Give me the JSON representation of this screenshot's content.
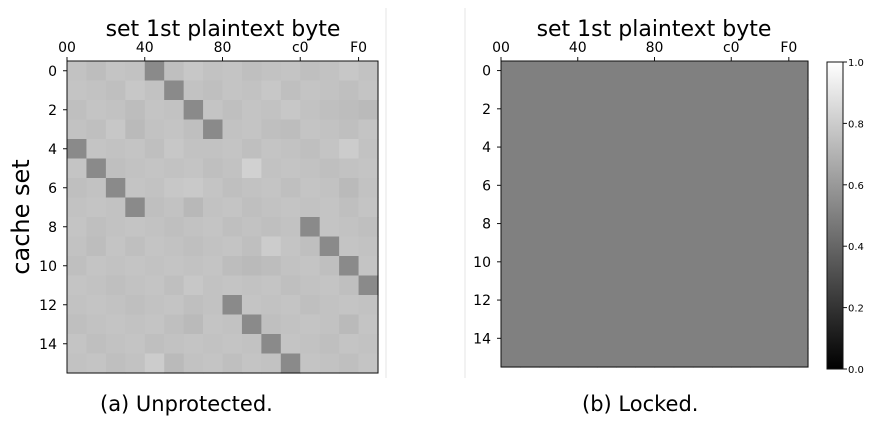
{
  "chart_data": [
    {
      "type": "heatmap",
      "panel": "unprotected",
      "title": "set 1st plaintext byte",
      "ylabel": "cache set",
      "caption": "(a) Unprotected.",
      "x_tick_labels": [
        "00",
        "40",
        "80",
        "c0",
        "F0"
      ],
      "x_tick_values": [
        0,
        64,
        128,
        192,
        240
      ],
      "y_tick_labels": [
        "0",
        "2",
        "4",
        "6",
        "8",
        "10",
        "12",
        "14"
      ],
      "y_tick_values": [
        0,
        2,
        4,
        6,
        8,
        10,
        12,
        14
      ],
      "grid": false,
      "rows": 16,
      "cols": 16,
      "values": [
        [
          0.76,
          0.74,
          0.77,
          0.76,
          0.54,
          0.75,
          0.78,
          0.76,
          0.77,
          0.75,
          0.76,
          0.77,
          0.75,
          0.76,
          0.78,
          0.76
        ],
        [
          0.77,
          0.76,
          0.75,
          0.78,
          0.76,
          0.54,
          0.76,
          0.75,
          0.77,
          0.76,
          0.78,
          0.75,
          0.77,
          0.76,
          0.75,
          0.77
        ],
        [
          0.75,
          0.77,
          0.76,
          0.74,
          0.77,
          0.76,
          0.54,
          0.77,
          0.75,
          0.77,
          0.76,
          0.78,
          0.76,
          0.75,
          0.74,
          0.73
        ],
        [
          0.76,
          0.75,
          0.78,
          0.73,
          0.76,
          0.77,
          0.75,
          0.54,
          0.76,
          0.77,
          0.75,
          0.74,
          0.77,
          0.76,
          0.75,
          0.77
        ],
        [
          0.54,
          0.77,
          0.76,
          0.77,
          0.75,
          0.78,
          0.76,
          0.76,
          0.77,
          0.75,
          0.77,
          0.76,
          0.75,
          0.77,
          0.8,
          0.76
        ],
        [
          0.77,
          0.54,
          0.75,
          0.76,
          0.77,
          0.76,
          0.77,
          0.75,
          0.76,
          0.82,
          0.76,
          0.77,
          0.76,
          0.75,
          0.76,
          0.77
        ],
        [
          0.75,
          0.76,
          0.54,
          0.77,
          0.76,
          0.78,
          0.79,
          0.77,
          0.75,
          0.76,
          0.77,
          0.75,
          0.77,
          0.76,
          0.73,
          0.76
        ],
        [
          0.76,
          0.77,
          0.76,
          0.54,
          0.75,
          0.76,
          0.72,
          0.76,
          0.77,
          0.75,
          0.76,
          0.77,
          0.76,
          0.77,
          0.75,
          0.77
        ],
        [
          0.77,
          0.75,
          0.76,
          0.77,
          0.76,
          0.75,
          0.76,
          0.77,
          0.75,
          0.76,
          0.75,
          0.76,
          0.54,
          0.77,
          0.76,
          0.75
        ],
        [
          0.76,
          0.74,
          0.77,
          0.75,
          0.77,
          0.76,
          0.75,
          0.76,
          0.77,
          0.75,
          0.8,
          0.77,
          0.75,
          0.54,
          0.77,
          0.76
        ],
        [
          0.75,
          0.77,
          0.76,
          0.77,
          0.76,
          0.77,
          0.76,
          0.77,
          0.74,
          0.73,
          0.74,
          0.76,
          0.77,
          0.75,
          0.54,
          0.77
        ],
        [
          0.77,
          0.76,
          0.75,
          0.76,
          0.77,
          0.75,
          0.78,
          0.76,
          0.77,
          0.76,
          0.77,
          0.75,
          0.76,
          0.77,
          0.75,
          0.54
        ],
        [
          0.76,
          0.77,
          0.76,
          0.75,
          0.76,
          0.77,
          0.75,
          0.76,
          0.54,
          0.77,
          0.76,
          0.77,
          0.75,
          0.76,
          0.77,
          0.76
        ],
        [
          0.75,
          0.76,
          0.77,
          0.76,
          0.77,
          0.75,
          0.73,
          0.77,
          0.76,
          0.54,
          0.75,
          0.76,
          0.77,
          0.76,
          0.73,
          0.77
        ],
        [
          0.77,
          0.75,
          0.76,
          0.77,
          0.75,
          0.76,
          0.77,
          0.76,
          0.77,
          0.76,
          0.54,
          0.77,
          0.76,
          0.75,
          0.77,
          0.76
        ],
        [
          0.76,
          0.77,
          0.75,
          0.76,
          0.8,
          0.73,
          0.76,
          0.77,
          0.75,
          0.77,
          0.76,
          0.54,
          0.77,
          0.76,
          0.75,
          0.77
        ]
      ]
    },
    {
      "type": "heatmap",
      "panel": "locked",
      "title": "set 1st plaintext byte",
      "caption": "(b) Locked.",
      "x_tick_labels": [
        "00",
        "40",
        "80",
        "c0",
        "F0"
      ],
      "x_tick_values": [
        0,
        64,
        128,
        192,
        240
      ],
      "y_tick_labels": [
        "0",
        "2",
        "4",
        "6",
        "8",
        "10",
        "12",
        "14"
      ],
      "y_tick_values": [
        0,
        2,
        4,
        6,
        8,
        10,
        12,
        14
      ],
      "grid": false,
      "rows": 16,
      "cols": 16,
      "uniform_value": 0.5,
      "colorbar": {
        "colormap": "gray",
        "vmin": 0.0,
        "vmax": 1.0,
        "ticks": [
          0.0,
          0.2,
          0.4,
          0.6,
          0.8,
          1.0
        ],
        "tick_labels": [
          "0.0",
          "0.2",
          "0.4",
          "0.6",
          "0.8",
          "1.0"
        ]
      }
    }
  ]
}
